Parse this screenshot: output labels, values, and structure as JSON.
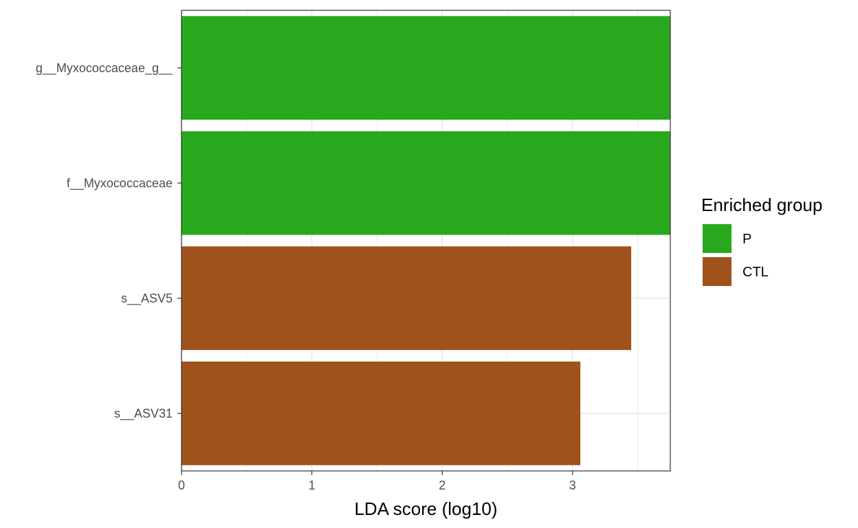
{
  "chart_data": {
    "type": "bar",
    "orientation": "horizontal",
    "categories": [
      "g__Myxococcaceae_g__",
      "f__Myxococcaceae",
      "s__ASV5",
      "s__ASV31"
    ],
    "values": [
      3.76,
      3.76,
      3.45,
      3.06
    ],
    "groups": [
      "P",
      "P",
      "CTL",
      "CTL"
    ],
    "xlabel": "LDA score (log10)",
    "ylabel": "",
    "xlim": [
      0,
      3.75
    ],
    "xticks": [
      0,
      1,
      2,
      3
    ],
    "grid": true,
    "legend": {
      "title": "Enriched group",
      "position": "right",
      "entries": [
        {
          "label": "P",
          "color": "#28a91d"
        },
        {
          "label": "CTL",
          "color": "#a0521c"
        }
      ]
    }
  }
}
